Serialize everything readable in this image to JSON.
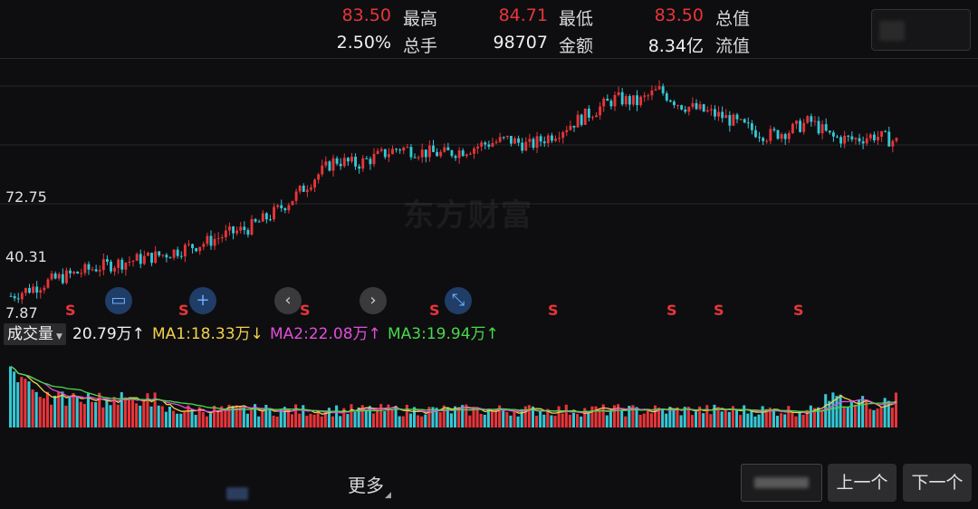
{
  "quote": {
    "row1": [
      {
        "value": "83.50",
        "label": "最高",
        "color": "red"
      },
      {
        "value": "84.71",
        "label": "最低",
        "color": "red"
      },
      {
        "value": "83.50",
        "label": "总值",
        "color": "red"
      }
    ],
    "row2": [
      {
        "value": "2.50%",
        "label": "总手",
        "color": "white"
      },
      {
        "value": "98707",
        "label": "金额",
        "color": "white"
      },
      {
        "value": "8.34亿",
        "label": "流值",
        "color": "white"
      }
    ]
  },
  "watermark": "东方财富",
  "price_axis": [
    "72.75",
    "40.31",
    "7.87"
  ],
  "nav": {
    "plus": "+",
    "prev": "‹",
    "next": "›",
    "collapse": "⤡"
  },
  "signals": {
    "sell_label": "S"
  },
  "volume": {
    "tab_label": "成交量",
    "value": "20.79万",
    "value_arrow": "↑",
    "ma1": "MA1:18.33万",
    "ma1_arrow": "↓",
    "ma2": "MA2:22.08万",
    "ma2_arrow": "↑",
    "ma3": "MA3:19.94万",
    "ma3_arrow": "↑"
  },
  "bottom": {
    "more_label": "更多",
    "prev_label": "上一个",
    "next_label": "下一个"
  },
  "colors": {
    "up": "#e8353a",
    "down": "#35c8d6",
    "ma1": "#f3d14a",
    "ma2": "#e14ed9",
    "ma3": "#49d84d",
    "background": "#0e0e10"
  },
  "chart_data": {
    "type": "candlestick",
    "title": "",
    "price_ticks": [
      72.75,
      40.31,
      7.87
    ],
    "close_trend": [
      8,
      12,
      16,
      19,
      22,
      24,
      26,
      28,
      31,
      34,
      38,
      41,
      47,
      55,
      65,
      74,
      72,
      76,
      80,
      78,
      77,
      79,
      82,
      84,
      81,
      86,
      92,
      98,
      104,
      102,
      108,
      101,
      98,
      95,
      90,
      86,
      88,
      93,
      85,
      84,
      86,
      83
    ]
  }
}
